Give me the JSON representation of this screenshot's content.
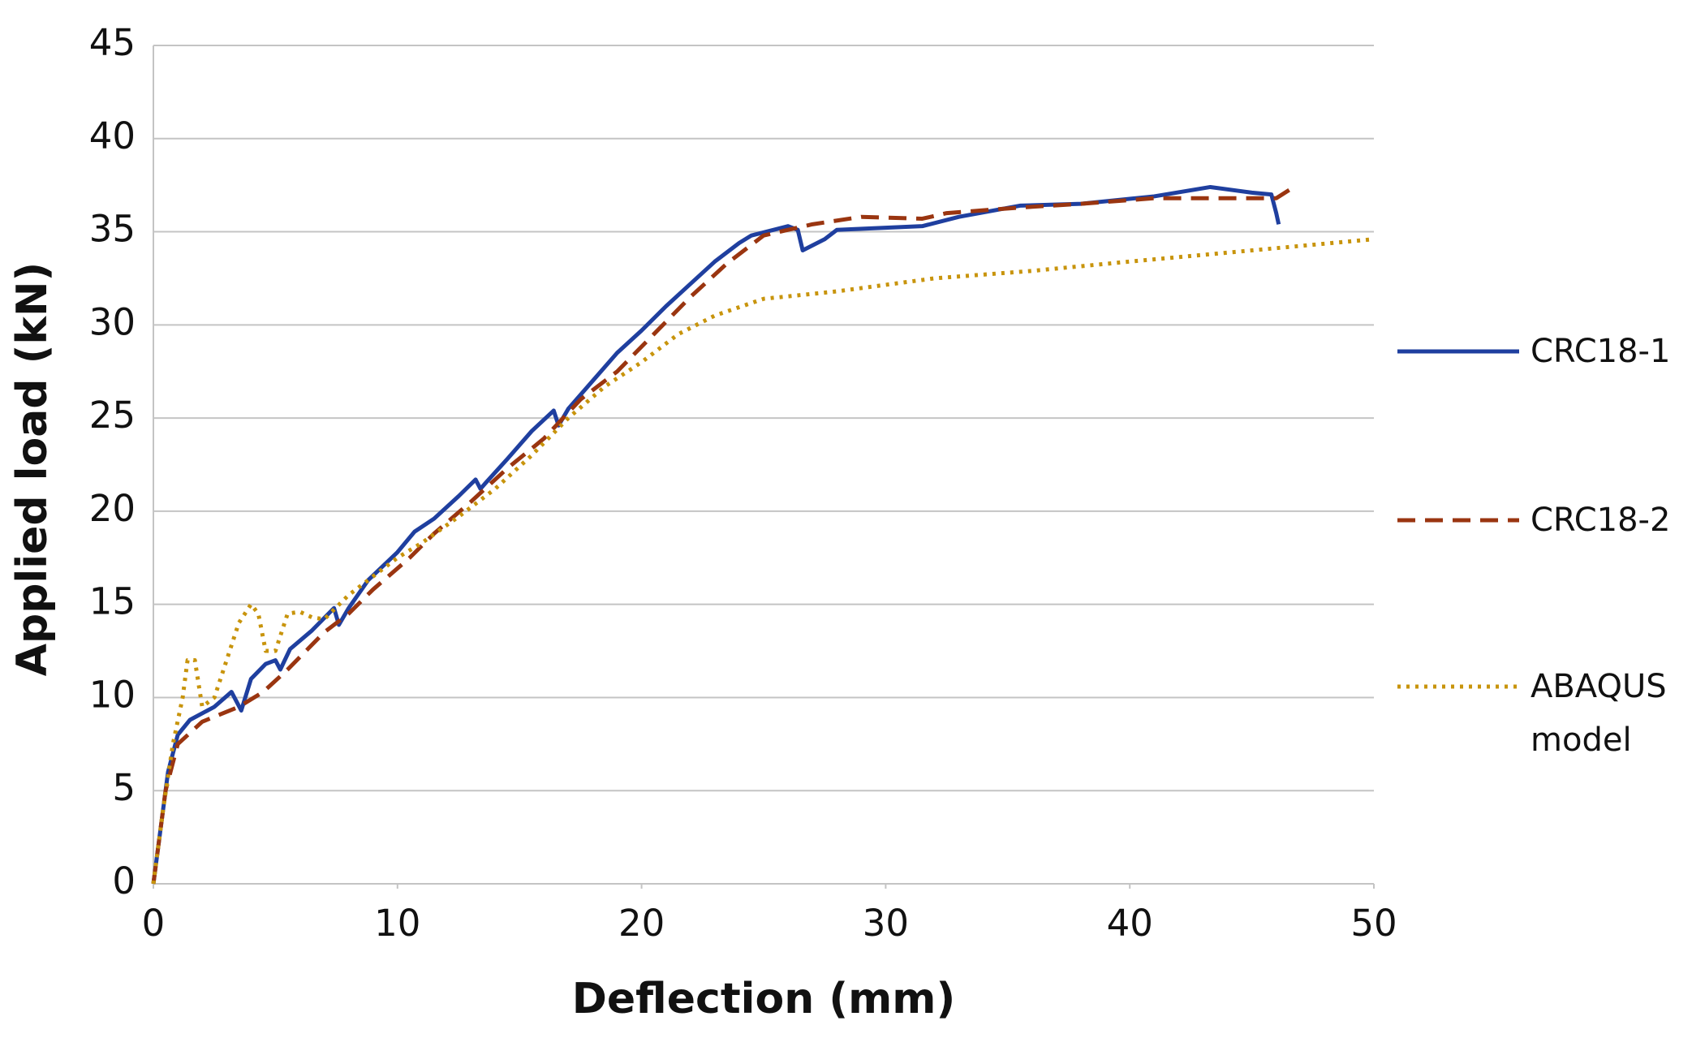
{
  "chart_data": {
    "type": "line",
    "x_label": "Deflection (mm)",
    "y_label": "Applied load (kN)",
    "xlim": [
      0,
      50
    ],
    "xticks": [
      0,
      10,
      20,
      30,
      40,
      50
    ],
    "ylim": [
      0,
      45
    ],
    "yticks": [
      0,
      5,
      10,
      15,
      20,
      25,
      30,
      35,
      40,
      45
    ],
    "grid": true,
    "legend": "right",
    "series": [
      {
        "name": "CRC18-1",
        "color": "#1f3f9f",
        "style": "solid",
        "x": [
          0,
          0.3,
          0.6,
          1,
          1.5,
          2.5,
          3.2,
          3.6,
          4,
          4.6,
          5,
          5.2,
          5.6,
          6.5,
          7.4,
          7.6,
          8,
          8.8,
          10,
          10.7,
          11.5,
          12.5,
          13.2,
          13.4,
          13.6,
          14.5,
          15.5,
          16.4,
          16.6,
          17,
          18,
          19,
          20,
          21,
          22,
          23,
          24,
          24.5,
          26,
          26.4,
          26.6,
          27.5,
          28,
          31.5,
          33,
          35.5,
          38,
          41,
          43.3,
          45,
          45.8,
          46,
          46.1
        ],
        "values": [
          0,
          3,
          6,
          8,
          8.8,
          9.5,
          10.3,
          9.3,
          11,
          11.8,
          12,
          11.5,
          12.6,
          13.6,
          14.8,
          13.9,
          14.8,
          16.3,
          17.8,
          18.9,
          19.6,
          20.8,
          21.7,
          21.2,
          21.5,
          22.8,
          24.3,
          25.4,
          24.6,
          25.5,
          27,
          28.5,
          29.7,
          31,
          32.2,
          33.4,
          34.4,
          34.8,
          35.3,
          35.1,
          34,
          34.6,
          35.1,
          35.3,
          35.8,
          36.4,
          36.5,
          36.9,
          37.4,
          37.1,
          37,
          36,
          35.4
        ]
      },
      {
        "name": "CRC18-2",
        "color": "#9a3510",
        "style": "dashed",
        "x": [
          0,
          0.5,
          1,
          2,
          3.5,
          4.5,
          5.5,
          7,
          8,
          9,
          10.5,
          11.5,
          13,
          14.5,
          16,
          17.5,
          19,
          20.5,
          22,
          23.5,
          25,
          27,
          29,
          31.5,
          32.5,
          35.5,
          38,
          41,
          45,
          46,
          46.6
        ],
        "values": [
          0,
          5,
          7.5,
          8.7,
          9.5,
          10.3,
          11.5,
          13.5,
          14.5,
          15.8,
          17.5,
          18.8,
          20.5,
          22.3,
          23.9,
          26,
          27.5,
          29.5,
          31.5,
          33.3,
          34.8,
          35.4,
          35.8,
          35.7,
          36,
          36.3,
          36.5,
          36.8,
          36.8,
          36.8,
          37.3
        ]
      },
      {
        "name": "ABAQUS model",
        "color": "#c8940c",
        "style": "dotted",
        "x": [
          0,
          0.4,
          0.8,
          1.2,
          1.4,
          1.7,
          2,
          2.5,
          3,
          3.5,
          4,
          4.3,
          4.6,
          5,
          5.5,
          6,
          6.5,
          7,
          8,
          9,
          10,
          11,
          12.5,
          14,
          15.5,
          17,
          18.5,
          20,
          21.5,
          23,
          25,
          28,
          32,
          36,
          40,
          45,
          50
        ],
        "values": [
          0,
          4,
          7.5,
          10,
          12,
          12,
          9.5,
          10,
          12,
          14,
          15,
          14.5,
          12.5,
          12.5,
          14.5,
          14.6,
          14.3,
          14.2,
          15.5,
          16.5,
          17.5,
          18.3,
          19.7,
          21.2,
          23,
          25,
          26.7,
          28,
          29.5,
          30.5,
          31.4,
          31.8,
          32.5,
          32.9,
          33.4,
          34,
          34.6
        ]
      }
    ]
  }
}
